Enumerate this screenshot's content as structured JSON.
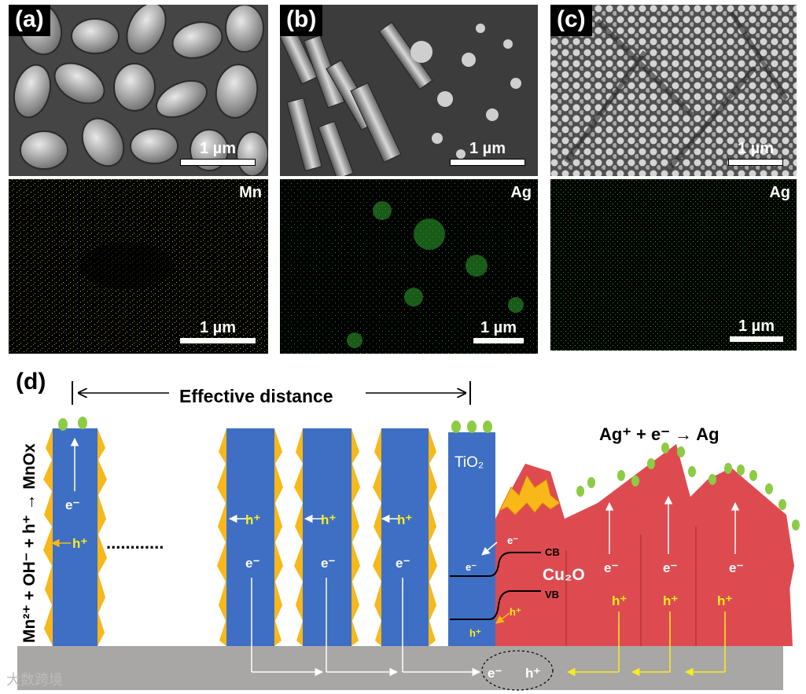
{
  "panels": [
    {
      "label": "(a)",
      "scale": "1 µm",
      "map_element": "Mn",
      "map_scale": "1 µm"
    },
    {
      "label": "(b)",
      "scale": "1 µm",
      "map_element": "Ag",
      "map_scale": "1 µm"
    },
    {
      "label": "(c)",
      "scale": "1 µm",
      "map_element": "Ag",
      "map_scale": "1 µm"
    }
  ],
  "scheme": {
    "label": "(d)",
    "effective_distance": "Effective distance",
    "left_reaction": "Mn²⁺ + OH⁻ + h⁺ → MnOx",
    "right_reaction": "Ag⁺ + e⁻ → Ag",
    "tio2": "TiO₂",
    "cu2o": "Cu₂O",
    "cb": "CB",
    "vb": "VB",
    "electron": "e⁻",
    "hole": "h⁺",
    "dots": "............"
  },
  "watermark": "大数跨境",
  "colors": {
    "tio2_blue": "#3f6fc4",
    "cu2o_red": "#dd4b50",
    "spark": "#f8b81a",
    "ag_green": "#8ccc44",
    "substrate": "#a9a6a6",
    "arrow_yellow": "#f6ee1e",
    "map_yellow": "#d7d84a",
    "map_green": "#33cc33"
  }
}
